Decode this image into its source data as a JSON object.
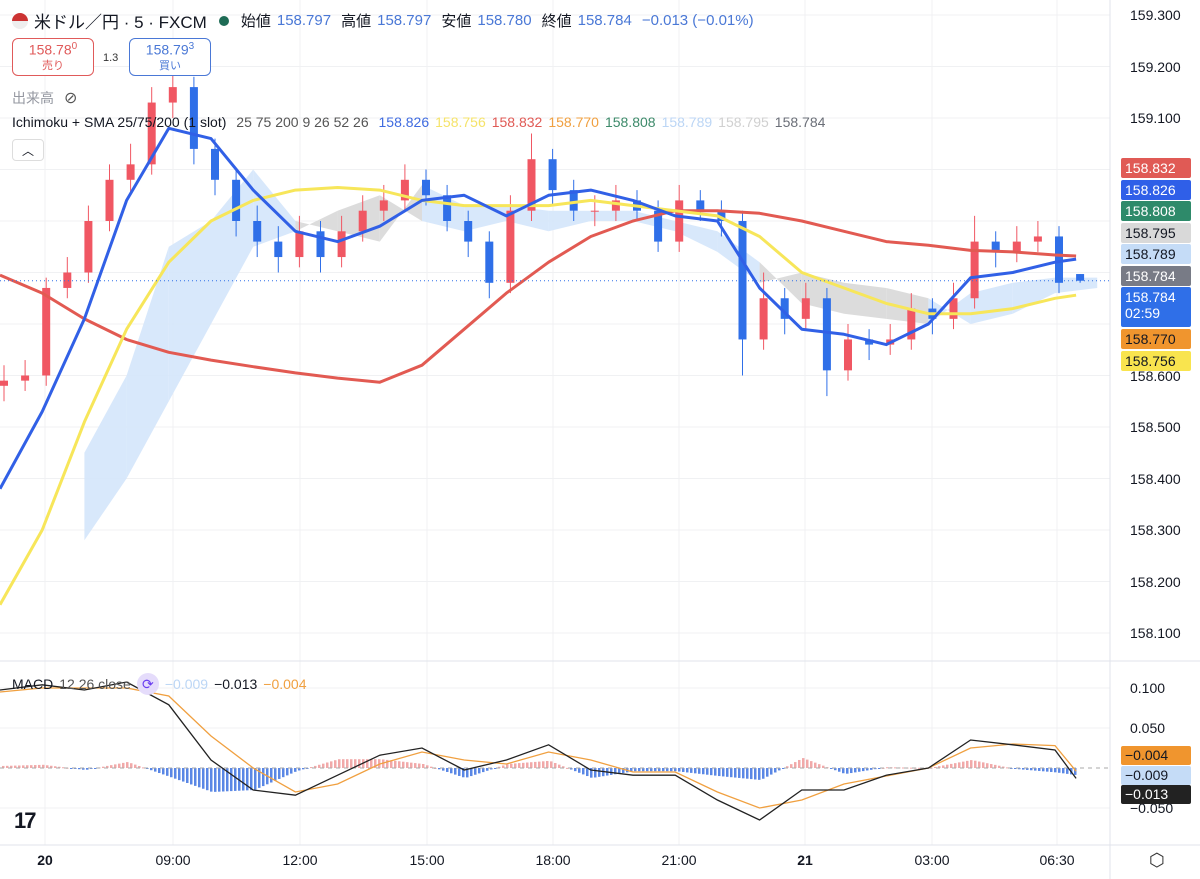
{
  "header": {
    "symbol": "米ドル／円 · 5 · FXCM",
    "open_label": "始値",
    "open": "158.797",
    "high_label": "高値",
    "high": "158.797",
    "low_label": "安値",
    "low": "158.780",
    "close_label": "終値",
    "close": "158.784",
    "change": "−0.013 (−0.01%)",
    "flag_icon": "us-flag-icon",
    "status_color": "#1e6b55"
  },
  "trade": {
    "sell_price": "158.78",
    "sell_sup": "0",
    "sell_label": "売り",
    "spread": "1.3",
    "buy_price": "158.79",
    "buy_sup": "3",
    "buy_label": "買い"
  },
  "volume": {
    "label": "出来高",
    "icon": "eye-off-icon"
  },
  "indicator": {
    "name": "Ichimoku + SMA 25/75/200 (1 slot)",
    "params": "25 75 200 9 26 52 26",
    "values": [
      {
        "v": "158.826",
        "color": "#3f6be0"
      },
      {
        "v": "158.756",
        "color": "#f5e36a"
      },
      {
        "v": "158.832",
        "color": "#e05a55"
      },
      {
        "v": "158.770",
        "color": "#f0a040"
      },
      {
        "v": "158.808",
        "color": "#3d8a6a"
      },
      {
        "v": "158.789",
        "color": "#bcd6f5"
      },
      {
        "v": "158.795",
        "color": "#d0d0d0"
      },
      {
        "v": "158.784",
        "color": "#6b6f78"
      }
    ]
  },
  "macd_header": {
    "name": "MACD",
    "params": "12 26 close",
    "hist": "−0.009",
    "macd": "−0.013",
    "signal": "−0.004"
  },
  "price_tags": [
    {
      "v": "158.832",
      "bg": "#e05a55",
      "fg": "#fff",
      "p": 158.832
    },
    {
      "v": "158.826",
      "bg": "#2f5fe8",
      "fg": "#fff",
      "p": 158.826
    },
    {
      "v": "158.808",
      "bg": "#2e8a6a",
      "fg": "#fff",
      "p": 158.808
    },
    {
      "v": "158.795",
      "bg": "#d9d9d9",
      "fg": "#131722",
      "p": 158.795
    },
    {
      "v": "158.789",
      "bg": "#c5dcf7",
      "fg": "#131722",
      "p": 158.789
    },
    {
      "v": "158.784",
      "bg": "#787b86",
      "fg": "#fff",
      "p": 158.784
    },
    {
      "v": "158.784",
      "sub": "02:59",
      "bg": "#2f6fe8",
      "fg": "#fff",
      "p": 158.784
    },
    {
      "v": "158.770",
      "bg": "#f0952e",
      "fg": "#131722",
      "p": 158.77
    },
    {
      "v": "158.756",
      "bg": "#f9e44e",
      "fg": "#131722",
      "p": 158.756
    }
  ],
  "macd_tags": [
    {
      "v": "−0.004",
      "bg": "#f0952e",
      "fg": "#131722"
    },
    {
      "v": "−0.009",
      "bg": "#c5dcf7",
      "fg": "#131722"
    },
    {
      "v": "−0.013",
      "bg": "#222",
      "fg": "#fff"
    }
  ],
  "time_labels": [
    {
      "t": "20",
      "bold": true
    },
    {
      "t": "09:00"
    },
    {
      "t": "12:00"
    },
    {
      "t": "15:00"
    },
    {
      "t": "18:00"
    },
    {
      "t": "21:00"
    },
    {
      "t": "21",
      "bold": true
    },
    {
      "t": "03:00"
    },
    {
      "t": "06:30"
    }
  ],
  "logo": "TradingView",
  "chart_data": {
    "type": "candlestick",
    "price_axis": {
      "ticks": [
        "159.300",
        "159.200",
        "159.100",
        "158.600",
        "158.500",
        "158.400",
        "158.300",
        "158.200",
        "158.100"
      ],
      "range": [
        158.05,
        159.31
      ]
    },
    "macd_axis": {
      "ticks": [
        "0.100",
        "0.050",
        "−0.050"
      ],
      "range": [
        -0.09,
        0.12
      ]
    },
    "colors": {
      "up": "#f05763",
      "down": "#2f6fe8",
      "sma25": "#3160e6",
      "sma75": "#f7e65a",
      "sma200": "#e25a52",
      "macd": "#222222",
      "signal": "#f0a040",
      "cloud_bull": "#d4e5fb",
      "cloud_bear": "#d8d8d8"
    },
    "candle_interval": "30min (sampled)",
    "candle_start": "05:00",
    "candles": [
      [
        158.58,
        158.62,
        158.55,
        158.59
      ],
      [
        158.59,
        158.63,
        158.57,
        158.6
      ],
      [
        158.6,
        158.79,
        158.58,
        158.77
      ],
      [
        158.77,
        158.83,
        158.75,
        158.8
      ],
      [
        158.8,
        158.93,
        158.78,
        158.9
      ],
      [
        158.9,
        159.01,
        158.88,
        158.98
      ],
      [
        158.98,
        159.05,
        158.95,
        159.01
      ],
      [
        159.01,
        159.16,
        158.99,
        159.13
      ],
      [
        159.13,
        159.22,
        159.1,
        159.16
      ],
      [
        159.16,
        159.18,
        159.01,
        159.04
      ],
      [
        159.04,
        159.06,
        158.95,
        158.98
      ],
      [
        158.98,
        159.0,
        158.87,
        158.9
      ],
      [
        158.9,
        158.93,
        158.83,
        158.86
      ],
      [
        158.86,
        158.89,
        158.8,
        158.83
      ],
      [
        158.83,
        158.91,
        158.81,
        158.88
      ],
      [
        158.88,
        158.9,
        158.8,
        158.83
      ],
      [
        158.83,
        158.91,
        158.81,
        158.88
      ],
      [
        158.88,
        158.95,
        158.86,
        158.92
      ],
      [
        158.92,
        158.97,
        158.9,
        158.94
      ],
      [
        158.94,
        159.01,
        158.92,
        158.98
      ],
      [
        158.98,
        159.0,
        158.93,
        158.95
      ],
      [
        158.95,
        158.97,
        158.88,
        158.9
      ],
      [
        158.9,
        158.92,
        158.83,
        158.86
      ],
      [
        158.86,
        158.88,
        158.75,
        158.78
      ],
      [
        158.78,
        158.95,
        158.76,
        158.92
      ],
      [
        158.92,
        159.07,
        158.9,
        159.02
      ],
      [
        159.02,
        159.04,
        158.93,
        158.96
      ],
      [
        158.96,
        158.98,
        158.9,
        158.92
      ],
      [
        158.92,
        158.95,
        158.89,
        158.92
      ],
      [
        158.92,
        158.97,
        158.9,
        158.94
      ],
      [
        158.94,
        158.96,
        158.9,
        158.92
      ],
      [
        158.92,
        158.94,
        158.84,
        158.86
      ],
      [
        158.86,
        158.97,
        158.84,
        158.94
      ],
      [
        158.94,
        158.96,
        158.9,
        158.92
      ],
      [
        158.92,
        158.94,
        158.87,
        158.9
      ],
      [
        158.9,
        158.92,
        158.6,
        158.67
      ],
      [
        158.67,
        158.8,
        158.65,
        158.75
      ],
      [
        158.75,
        158.77,
        158.68,
        158.71
      ],
      [
        158.71,
        158.78,
        158.69,
        158.75
      ],
      [
        158.75,
        158.77,
        158.56,
        158.61
      ],
      [
        158.61,
        158.7,
        158.59,
        158.67
      ],
      [
        158.67,
        158.69,
        158.63,
        158.66
      ],
      [
        158.66,
        158.7,
        158.64,
        158.67
      ],
      [
        158.67,
        158.76,
        158.65,
        158.73
      ],
      [
        158.73,
        158.75,
        158.68,
        158.71
      ],
      [
        158.71,
        158.78,
        158.69,
        158.75
      ],
      [
        158.75,
        158.91,
        158.73,
        158.86
      ],
      [
        158.86,
        158.88,
        158.81,
        158.84
      ],
      [
        158.84,
        158.89,
        158.82,
        158.86
      ],
      [
        158.86,
        158.9,
        158.84,
        158.87
      ],
      [
        158.87,
        158.89,
        158.76,
        158.78
      ],
      [
        158.797,
        158.797,
        158.78,
        158.784
      ]
    ],
    "line_interval": "1h (sampled, last at 06:30)",
    "sma25": [
      158.38,
      158.53,
      158.71,
      158.94,
      159.08,
      159.06,
      158.96,
      158.88,
      158.86,
      158.89,
      158.94,
      158.95,
      158.91,
      158.95,
      158.96,
      158.94,
      158.91,
      158.9,
      158.77,
      158.69,
      158.68,
      158.66,
      158.7,
      158.79,
      158.8,
      158.82,
      158.826
    ],
    "sma75": [
      158.155,
      158.3,
      158.51,
      158.69,
      158.82,
      158.9,
      158.94,
      158.96,
      158.965,
      158.96,
      158.94,
      158.93,
      158.93,
      158.93,
      158.94,
      158.93,
      158.92,
      158.91,
      158.87,
      158.8,
      158.77,
      158.74,
      158.72,
      158.72,
      158.73,
      158.75,
      158.756
    ],
    "sma200": [
      158.795,
      158.76,
      158.71,
      158.67,
      158.645,
      158.63,
      158.617,
      158.605,
      158.595,
      158.587,
      158.62,
      158.69,
      158.76,
      158.82,
      158.87,
      158.9,
      158.92,
      158.92,
      158.915,
      158.9,
      158.88,
      158.86,
      158.853,
      158.843,
      158.84,
      158.834,
      158.832
    ],
    "macd": [
      0.0975,
      0.104,
      0.0975,
      0.1075,
      0.079,
      0.01,
      -0.0275,
      -0.034,
      -0.009,
      0.016,
      0.025,
      -0.0025,
      0.01,
      0.029,
      -0.0025,
      -0.009,
      -0.009,
      -0.04,
      -0.065,
      -0.0275,
      -0.0275,
      -0.009,
      0,
      0.035,
      0.029,
      0.0225,
      -0.013
    ],
    "signal": [
      0.095,
      0.1,
      0.1,
      0.1,
      0.09,
      0.04,
      0.0,
      -0.03,
      -0.02,
      0.005,
      0.02,
      0.01,
      0.005,
      0.02,
      0.01,
      -0.005,
      -0.005,
      -0.03,
      -0.05,
      -0.04,
      -0.02,
      -0.01,
      0.0,
      0.025,
      0.03,
      0.028,
      -0.004
    ],
    "cloud_start": "07:00",
    "span_a": [
      158.45,
      158.6,
      158.85,
      158.9,
      159.0,
      158.9,
      158.88,
      158.86,
      158.97,
      158.93,
      158.93,
      158.92,
      158.92,
      158.92,
      158.9,
      158.88,
      158.82,
      158.74,
      158.72,
      158.71,
      158.7,
      158.76,
      158.78,
      158.79,
      158.79
    ],
    "span_b": [
      158.28,
      158.4,
      158.55,
      158.7,
      158.85,
      158.88,
      158.92,
      158.95,
      158.9,
      158.88,
      158.9,
      158.88,
      158.9,
      158.9,
      158.88,
      158.84,
      158.78,
      158.8,
      158.78,
      158.77,
      158.75,
      158.7,
      158.72,
      158.76,
      158.77
    ],
    "current_price": 158.784
  }
}
